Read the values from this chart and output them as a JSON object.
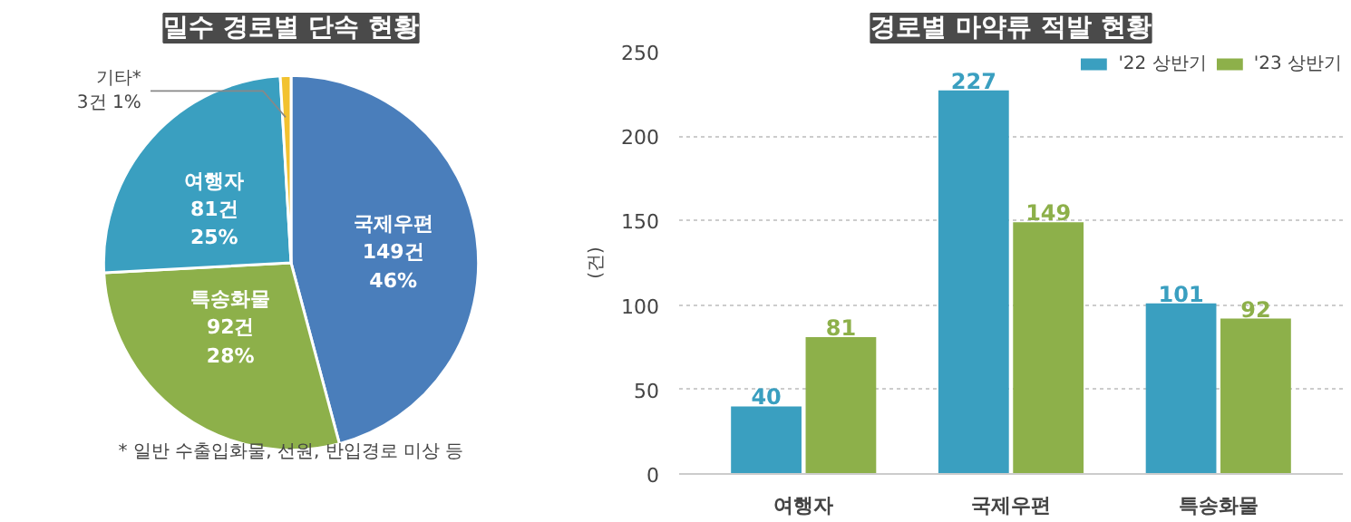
{
  "chart_data": [
    {
      "type": "pie",
      "title": "밀수 경로별 단속 현황",
      "categories": [
        "국제우편",
        "특송화물",
        "여행자",
        "기타*"
      ],
      "values": [
        149,
        92,
        81,
        3
      ],
      "colors": [
        "#4a7ebb",
        "#8db04a",
        "#3a9fc0",
        "#f2c230"
      ],
      "value_labels": [
        "149건\n46%",
        "92건\n28%",
        "81건\n25%",
        "3건 1%"
      ],
      "annotations": [
        "* 일반 수출입화물, 선원, 반입경로 미상 등"
      ]
    },
    {
      "type": "bar",
      "title": "경로별 마약류 적발 현황",
      "ylabel": "(건)",
      "categories": [
        "여행자",
        "국제우편",
        "특송화물"
      ],
      "series": [
        {
          "name": "'22 상반기",
          "color": "#3a9fc0",
          "values": [
            40,
            227,
            101
          ]
        },
        {
          "name": "'23 상반기",
          "color": "#8db04a",
          "values": [
            81,
            149,
            92
          ]
        }
      ],
      "ylim": [
        0,
        250
      ],
      "yticks": [
        0,
        50,
        100,
        150,
        200,
        250
      ],
      "grid": "y",
      "legend": "top right",
      "data_labels": true
    }
  ]
}
